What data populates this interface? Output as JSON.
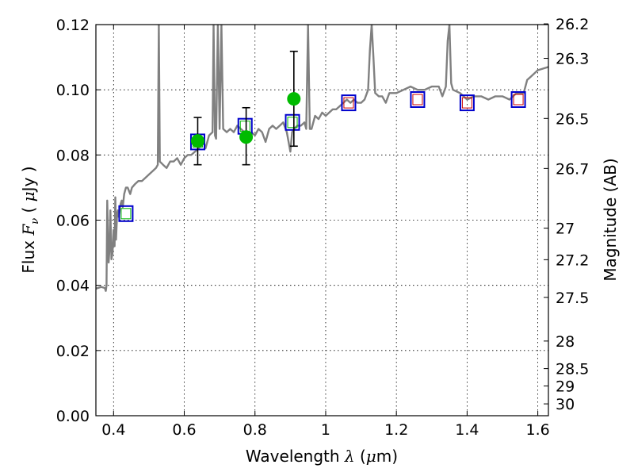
{
  "chart_data": {
    "type": "scatter",
    "xlabel": {
      "prefix": "Wavelength  ",
      "symbol": "λ",
      "suffix": " (",
      "mu": "μ",
      "unit": "m)"
    },
    "ylabel": {
      "prefix": "Flux  ",
      "symbol": "F",
      "sub": "ν",
      "suffix": "  ( ",
      "mu": "μ",
      "unit": "Jy )"
    },
    "ylabel_right": "Magnitude (AB)",
    "xlim": [
      0.35,
      1.63
    ],
    "ylim": [
      0.0,
      0.12
    ],
    "grid": true,
    "x_ticks": [
      {
        "value": 0.4,
        "label": "0.4"
      },
      {
        "value": 0.6,
        "label": "0.6"
      },
      {
        "value": 0.8,
        "label": "0.8"
      },
      {
        "value": 1.0,
        "label": "1"
      },
      {
        "value": 1.2,
        "label": "1.2"
      },
      {
        "value": 1.4,
        "label": "1.4"
      },
      {
        "value": 1.6,
        "label": "1.6"
      }
    ],
    "y_ticks": [
      {
        "value": 0.0,
        "label": "0.00"
      },
      {
        "value": 0.02,
        "label": "0.02"
      },
      {
        "value": 0.04,
        "label": "0.04"
      },
      {
        "value": 0.06,
        "label": "0.06"
      },
      {
        "value": 0.08,
        "label": "0.08"
      },
      {
        "value": 0.1,
        "label": "0.10"
      },
      {
        "value": 0.12,
        "label": "0.12"
      }
    ],
    "right_ticks": [
      {
        "mag": 26.2,
        "label": "26.2"
      },
      {
        "mag": 26.3,
        "label": "26.3"
      },
      {
        "mag": 26.5,
        "label": "26.5"
      },
      {
        "mag": 26.7,
        "label": "26.7"
      },
      {
        "mag": 27.0,
        "label": "27"
      },
      {
        "mag": 27.2,
        "label": "27.2"
      },
      {
        "mag": 27.5,
        "label": "27.5"
      },
      {
        "mag": 28.0,
        "label": "28"
      },
      {
        "mag": 28.5,
        "label": "28.5"
      },
      {
        "mag": 29.0,
        "label": "29"
      },
      {
        "mag": 30.0,
        "label": "30"
      }
    ],
    "colors": {
      "model": "#808080",
      "model_points": "#0000cc",
      "observed_points": "#00bb00",
      "errorbar": "#000000",
      "marker_inner_green": "#00bb00",
      "marker_inner_red": "#cc0000",
      "grid": "#000000"
    },
    "model_spectrum": [
      [
        0.35,
        0.039
      ],
      [
        0.365,
        0.0395
      ],
      [
        0.375,
        0.0392
      ],
      [
        0.378,
        0.0383
      ],
      [
        0.38,
        0.04
      ],
      [
        0.382,
        0.066
      ],
      [
        0.386,
        0.047
      ],
      [
        0.389,
        0.052
      ],
      [
        0.391,
        0.063
      ],
      [
        0.394,
        0.048
      ],
      [
        0.397,
        0.05
      ],
      [
        0.4,
        0.057
      ],
      [
        0.403,
        0.052
      ],
      [
        0.405,
        0.067
      ],
      [
        0.407,
        0.054
      ],
      [
        0.41,
        0.062
      ],
      [
        0.412,
        0.063
      ],
      [
        0.415,
        0.061
      ],
      [
        0.42,
        0.065
      ],
      [
        0.423,
        0.066
      ],
      [
        0.426,
        0.064
      ],
      [
        0.43,
        0.068
      ],
      [
        0.435,
        0.07
      ],
      [
        0.44,
        0.07
      ],
      [
        0.447,
        0.068
      ],
      [
        0.452,
        0.07
      ],
      [
        0.46,
        0.071
      ],
      [
        0.47,
        0.072
      ],
      [
        0.48,
        0.072
      ],
      [
        0.49,
        0.073
      ],
      [
        0.5,
        0.074
      ],
      [
        0.51,
        0.075
      ],
      [
        0.52,
        0.076
      ],
      [
        0.525,
        0.077
      ],
      [
        0.528,
        0.12
      ],
      [
        0.531,
        0.078
      ],
      [
        0.54,
        0.077
      ],
      [
        0.55,
        0.076
      ],
      [
        0.56,
        0.078
      ],
      [
        0.57,
        0.078
      ],
      [
        0.58,
        0.079
      ],
      [
        0.59,
        0.077
      ],
      [
        0.6,
        0.079
      ],
      [
        0.61,
        0.08
      ],
      [
        0.62,
        0.08
      ],
      [
        0.63,
        0.081
      ],
      [
        0.64,
        0.082
      ],
      [
        0.65,
        0.083
      ],
      [
        0.655,
        0.084
      ],
      [
        0.66,
        0.082
      ],
      [
        0.67,
        0.086
      ],
      [
        0.68,
        0.087
      ],
      [
        0.683,
        0.12
      ],
      [
        0.687,
        0.086
      ],
      [
        0.69,
        0.085
      ],
      [
        0.695,
        0.12
      ],
      [
        0.7,
        0.088
      ],
      [
        0.705,
        0.12
      ],
      [
        0.71,
        0.088
      ],
      [
        0.72,
        0.087
      ],
      [
        0.73,
        0.088
      ],
      [
        0.74,
        0.087
      ],
      [
        0.75,
        0.089
      ],
      [
        0.76,
        0.088
      ],
      [
        0.77,
        0.087
      ],
      [
        0.78,
        0.086
      ],
      [
        0.79,
        0.087
      ],
      [
        0.8,
        0.086
      ],
      [
        0.81,
        0.088
      ],
      [
        0.82,
        0.087
      ],
      [
        0.83,
        0.084
      ],
      [
        0.84,
        0.088
      ],
      [
        0.85,
        0.089
      ],
      [
        0.86,
        0.088
      ],
      [
        0.87,
        0.089
      ],
      [
        0.88,
        0.09
      ],
      [
        0.89,
        0.087
      ],
      [
        0.9,
        0.081
      ],
      [
        0.905,
        0.087
      ],
      [
        0.91,
        0.088
      ],
      [
        0.92,
        0.089
      ],
      [
        0.93,
        0.089
      ],
      [
        0.94,
        0.09
      ],
      [
        0.945,
        0.088
      ],
      [
        0.95,
        0.12
      ],
      [
        0.955,
        0.088
      ],
      [
        0.96,
        0.088
      ],
      [
        0.97,
        0.092
      ],
      [
        0.98,
        0.091
      ],
      [
        0.99,
        0.093
      ],
      [
        1.0,
        0.092
      ],
      [
        1.01,
        0.093
      ],
      [
        1.02,
        0.094
      ],
      [
        1.03,
        0.094
      ],
      [
        1.04,
        0.095
      ],
      [
        1.05,
        0.096
      ],
      [
        1.06,
        0.097
      ],
      [
        1.07,
        0.096
      ],
      [
        1.08,
        0.097
      ],
      [
        1.09,
        0.096
      ],
      [
        1.1,
        0.096
      ],
      [
        1.11,
        0.097
      ],
      [
        1.12,
        0.1
      ],
      [
        1.125,
        0.112
      ],
      [
        1.13,
        0.12
      ],
      [
        1.135,
        0.11
      ],
      [
        1.14,
        0.099
      ],
      [
        1.15,
        0.098
      ],
      [
        1.16,
        0.098
      ],
      [
        1.17,
        0.096
      ],
      [
        1.18,
        0.099
      ],
      [
        1.2,
        0.099
      ],
      [
        1.22,
        0.1
      ],
      [
        1.24,
        0.101
      ],
      [
        1.26,
        0.1
      ],
      [
        1.28,
        0.1
      ],
      [
        1.3,
        0.101
      ],
      [
        1.32,
        0.101
      ],
      [
        1.33,
        0.098
      ],
      [
        1.34,
        0.101
      ],
      [
        1.345,
        0.115
      ],
      [
        1.35,
        0.12
      ],
      [
        1.355,
        0.102
      ],
      [
        1.36,
        0.1
      ],
      [
        1.38,
        0.099
      ],
      [
        1.4,
        0.097
      ],
      [
        1.42,
        0.098
      ],
      [
        1.44,
        0.098
      ],
      [
        1.46,
        0.097
      ],
      [
        1.48,
        0.098
      ],
      [
        1.5,
        0.098
      ],
      [
        1.52,
        0.097
      ],
      [
        1.54,
        0.099
      ],
      [
        1.56,
        0.099
      ],
      [
        1.57,
        0.103
      ],
      [
        1.58,
        0.104
      ],
      [
        1.6,
        0.106
      ],
      [
        1.63,
        0.107
      ]
    ],
    "model_points": [
      {
        "x": 0.435,
        "y": 0.062,
        "inner": "green"
      },
      {
        "x": 0.638,
        "y": 0.084,
        "inner": "green"
      },
      {
        "x": 0.772,
        "y": 0.0888,
        "inner": "green"
      },
      {
        "x": 0.906,
        "y": 0.09,
        "inner": "green"
      },
      {
        "x": 1.065,
        "y": 0.096,
        "inner": "red"
      },
      {
        "x": 1.26,
        "y": 0.097,
        "inner": "red"
      },
      {
        "x": 1.4,
        "y": 0.096,
        "inner": "red"
      },
      {
        "x": 1.545,
        "y": 0.097,
        "inner": "red"
      }
    ],
    "observed_points": [
      {
        "x": 0.638,
        "y": 0.0843,
        "yerr_low": 0.077,
        "yerr_high": 0.0915
      },
      {
        "x": 0.775,
        "y": 0.0855,
        "yerr_low": 0.077,
        "yerr_high": 0.0945
      },
      {
        "x": 0.91,
        "y": 0.0972,
        "yerr_low": 0.0827,
        "yerr_high": 0.1118
      }
    ]
  }
}
